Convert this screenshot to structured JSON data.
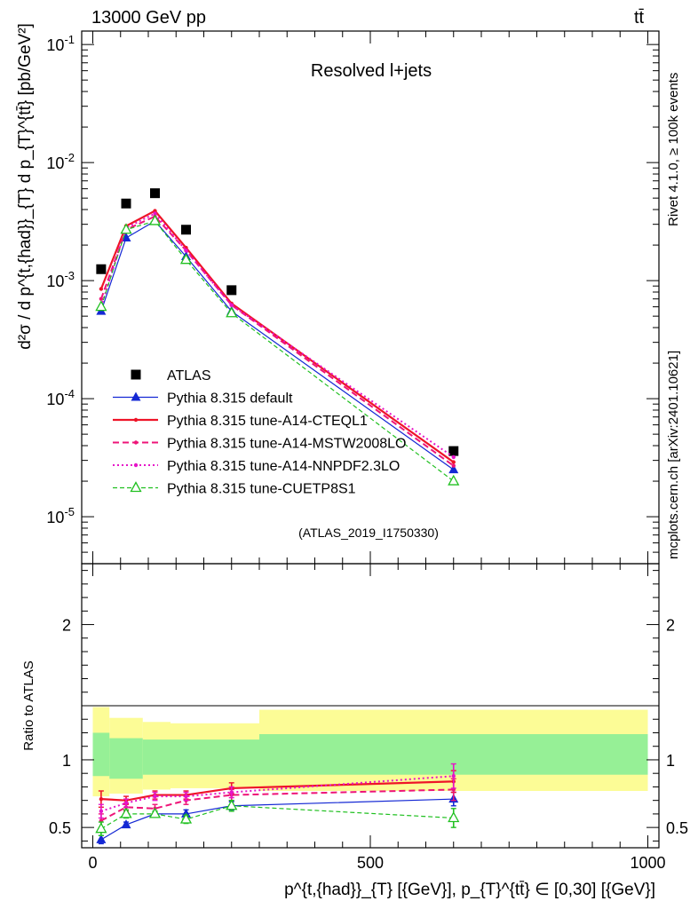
{
  "header": {
    "energy_label": "13000 GeV pp",
    "process_label": "tt̄",
    "rivet_label": "Rivet 4.1.0, ≥ 100k events",
    "mcplots_label": "mcplots.cern.ch [arXiv:2401.10621]"
  },
  "chart_data": [
    {
      "type": "line",
      "panel": "main",
      "title": "Resolved l+jets",
      "analysis_tag": "(ATLAS_2019_I1750330)",
      "ylabel": "d²σ / d p^{t,{had}}_{T} d p_{T}^{tt̄} [pb/GeV²]",
      "yscale": "log",
      "xlim": [
        -20,
        1020
      ],
      "ylim": [
        4e-06,
        0.13
      ],
      "ytick_labels": [
        "10^{-5}",
        "10^{-4}",
        "10^{-3}",
        "10^{-2}",
        "10^{-1}"
      ],
      "legend_position": "lower-left",
      "x": [
        15,
        60,
        112,
        168,
        250,
        650
      ],
      "series": [
        {
          "name": "ATLAS",
          "style": "data",
          "color": "#000000",
          "values": [
            0.00125,
            0.0045,
            0.0055,
            0.0027,
            0.00083,
            3.6e-05
          ]
        },
        {
          "name": "Pythia 8.315 default",
          "style": "solid-triangle",
          "color": "#1428d4",
          "values": [
            0.00055,
            0.0023,
            0.0032,
            0.0016,
            0.00055,
            2.5e-05
          ]
        },
        {
          "name": "Pythia 8.315 tune-A14-CTEQL1",
          "style": "solid-thick",
          "color": "#ee1428",
          "values": [
            0.00085,
            0.0029,
            0.0039,
            0.0019,
            0.00064,
            2.9e-05
          ]
        },
        {
          "name": "Pythia 8.315 tune-A14-MSTW2008LO",
          "style": "dashed",
          "color": "#ee1478",
          "values": [
            0.0007,
            0.0027,
            0.0035,
            0.0018,
            0.00062,
            2.7e-05
          ]
        },
        {
          "name": "Pythia 8.315 tune-A14-NNPDF2.3LO",
          "style": "dotted",
          "color": "#e614c8",
          "values": [
            0.0006,
            0.0028,
            0.0037,
            0.0018,
            0.00062,
            3.2e-05
          ]
        },
        {
          "name": "Pythia 8.315 tune-CUETP8S1",
          "style": "dashed-open-triangle",
          "color": "#20c020",
          "values": [
            0.0006,
            0.0027,
            0.0032,
            0.0015,
            0.00053,
            2e-05
          ]
        }
      ]
    },
    {
      "type": "line",
      "panel": "ratio",
      "ylabel": "Ratio to ATLAS",
      "xlabel": "p^{t,{had}}_{T} [{GeV}], p_{T}^{tt̄} ∈ [0,30] [{GeV}]",
      "xlim": [
        -20,
        1020
      ],
      "ylim": [
        0.35,
        2.45
      ],
      "ytick_labels": [
        "0.5",
        "1",
        "2"
      ],
      "xtick_labels": [
        "0",
        "500",
        "1000"
      ],
      "bins": [
        0,
        30,
        90,
        140,
        200,
        300,
        1000
      ],
      "band_yellow": {
        "lo": [
          0.73,
          0.75,
          0.78,
          0.79,
          0.79,
          0.77
        ],
        "hi": [
          1.39,
          1.31,
          1.28,
          1.27,
          1.27,
          1.37
        ]
      },
      "band_green": {
        "lo": [
          0.88,
          0.86,
          0.89,
          0.89,
          0.89,
          0.89
        ],
        "hi": [
          1.2,
          1.16,
          1.15,
          1.15,
          1.15,
          1.19
        ]
      },
      "x": [
        15,
        60,
        112,
        168,
        250,
        650
      ],
      "series": [
        {
          "name": "Pythia 8.315 default",
          "color": "#1428d4",
          "values": [
            0.41,
            0.52,
            0.6,
            0.6,
            0.66,
            0.71
          ],
          "err": [
            0.03,
            0.02,
            0.02,
            0.03,
            0.03,
            0.05
          ]
        },
        {
          "name": "Pythia 8.315 tune-A14-CTEQL1",
          "color": "#ee1428",
          "values": [
            0.71,
            0.7,
            0.74,
            0.74,
            0.79,
            0.84
          ],
          "err": [
            0.06,
            0.03,
            0.03,
            0.03,
            0.04,
            0.08
          ]
        },
        {
          "name": "Pythia 8.315 tune-A14-MSTW2008LO",
          "color": "#ee1478",
          "values": [
            0.55,
            0.65,
            0.64,
            0.7,
            0.74,
            0.78
          ],
          "err": [
            0.05,
            0.03,
            0.03,
            0.03,
            0.04,
            0.08
          ]
        },
        {
          "name": "Pythia 8.315 tune-A14-NNPDF2.3LO",
          "color": "#e614c8",
          "values": [
            0.62,
            0.68,
            0.73,
            0.73,
            0.76,
            0.88
          ],
          "err": [
            0.05,
            0.03,
            0.03,
            0.03,
            0.04,
            0.09
          ]
        },
        {
          "name": "Pythia 8.315 tune-CUETP8S1",
          "color": "#20c020",
          "values": [
            0.49,
            0.6,
            0.6,
            0.56,
            0.66,
            0.57
          ],
          "err": [
            0.05,
            0.03,
            0.02,
            0.03,
            0.04,
            0.07
          ]
        }
      ]
    }
  ]
}
